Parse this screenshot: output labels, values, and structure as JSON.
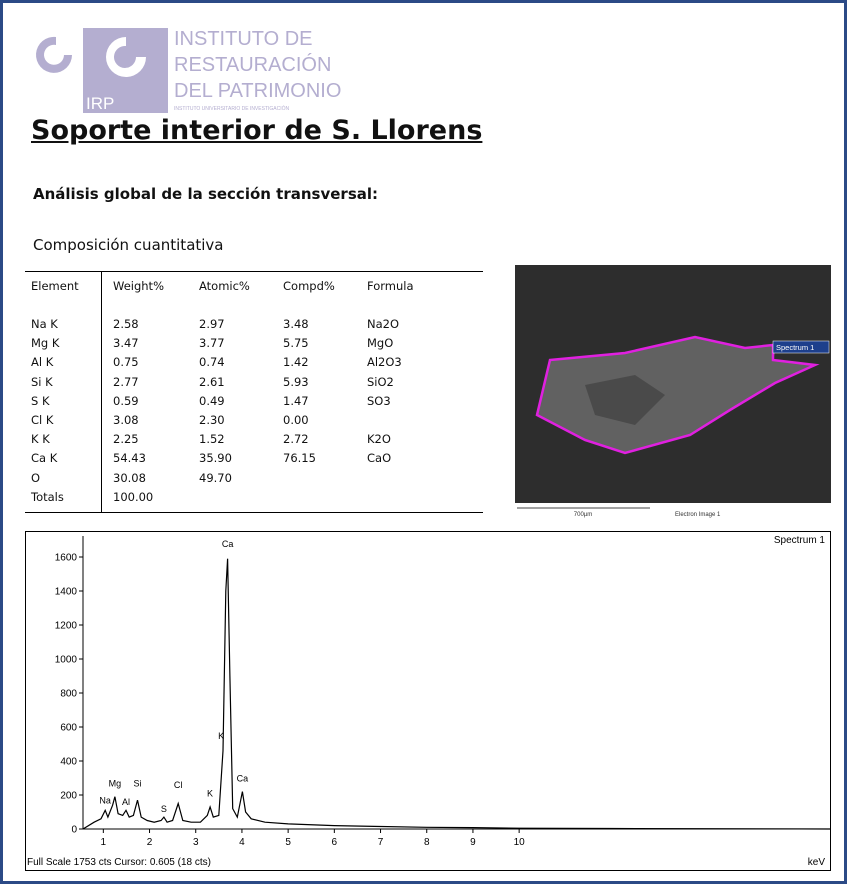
{
  "logo": {
    "line1": "INSTITUTO  DE",
    "line2": "RESTAURACIÓN",
    "line3": "DEL PATRIMONIO",
    "subline": "INSTITUTO UNIVERSITARIO DE INVESTIGACIÓN",
    "mark": "IRP"
  },
  "title": "Soporte interior de S. Llorens",
  "subtitle": "Análisis global de la sección transversal:",
  "section": "Composición  cuantitativa",
  "table": {
    "header": [
      "Element",
      "Weight%",
      "Atomic%",
      "Compd%",
      "Formula"
    ],
    "rows": [
      [
        "Na K",
        "2.58",
        "2.97",
        "3.48",
        "Na2O"
      ],
      [
        "Mg K",
        "3.47",
        "3.77",
        "5.75",
        "MgO"
      ],
      [
        "Al K",
        "0.75",
        "0.74",
        "1.42",
        "Al2O3"
      ],
      [
        "Si K",
        "2.77",
        "2.61",
        "5.93",
        "SiO2"
      ],
      [
        "S K",
        "0.59",
        "0.49",
        "1.47",
        "SO3"
      ],
      [
        "Cl K",
        "3.08",
        "2.30",
        "0.00"
      ],
      [
        "K K",
        "2.25",
        "1.52",
        "2.72",
        "K2O"
      ],
      [
        "Ca K",
        "54.43",
        "35.90",
        "76.15",
        "CaO"
      ],
      [
        "O",
        "30.08",
        "49.70"
      ],
      [
        "Totals",
        "100.00"
      ]
    ]
  },
  "image": {
    "spectrum_label": "Spectrum 1",
    "scale": "700µm",
    "caption": "Electron Image 1"
  },
  "spectrum": {
    "type": "line",
    "title": "Spectrum 1",
    "footer": "Full Scale 1753 cts Cursor: 0.605  (18 cts)",
    "x_unit": "keV",
    "color": "#000000",
    "xlim": [
      0.56,
      16.75
    ],
    "ylim": [
      0,
      1753
    ],
    "xticks": [
      1,
      2,
      3,
      4,
      5,
      6,
      7,
      8,
      9,
      10
    ],
    "yticks": [
      0,
      200,
      400,
      600,
      800,
      1000,
      1200,
      1400,
      1600
    ],
    "x": [
      0.56,
      0.8,
      0.95,
      1.04,
      1.1,
      1.2,
      1.25,
      1.32,
      1.42,
      1.49,
      1.56,
      1.65,
      1.74,
      1.82,
      1.95,
      2.1,
      2.25,
      2.31,
      2.38,
      2.5,
      2.62,
      2.72,
      2.9,
      3.1,
      3.25,
      3.31,
      3.38,
      3.5,
      3.59,
      3.65,
      3.69,
      3.74,
      3.8,
      3.9,
      4.01,
      4.08,
      4.2,
      4.5,
      5,
      6,
      7,
      8,
      9,
      10,
      12,
      14,
      16.75
    ],
    "y": [
      0,
      40,
      60,
      110,
      70,
      140,
      190,
      90,
      80,
      110,
      70,
      80,
      170,
      70,
      50,
      40,
      50,
      70,
      40,
      50,
      150,
      50,
      40,
      40,
      80,
      130,
      70,
      80,
      460,
      1400,
      1590,
      900,
      120,
      70,
      220,
      100,
      60,
      40,
      30,
      20,
      15,
      10,
      8,
      5,
      3,
      2,
      0
    ],
    "peak_labels": [
      {
        "label": "Na",
        "x": 1.04,
        "y": 150
      },
      {
        "label": "Mg",
        "x": 1.25,
        "y": 250
      },
      {
        "label": "Al",
        "x": 1.49,
        "y": 140
      },
      {
        "label": "Si",
        "x": 1.74,
        "y": 250
      },
      {
        "label": "S",
        "x": 2.31,
        "y": 100
      },
      {
        "label": "Cl",
        "x": 2.62,
        "y": 240
      },
      {
        "label": "K",
        "x": 3.31,
        "y": 190
      },
      {
        "label": "K",
        "x": 3.55,
        "y": 530
      },
      {
        "label": "Ca",
        "x": 3.69,
        "y": 1660
      },
      {
        "label": "Ca",
        "x": 4.01,
        "y": 280
      }
    ]
  }
}
